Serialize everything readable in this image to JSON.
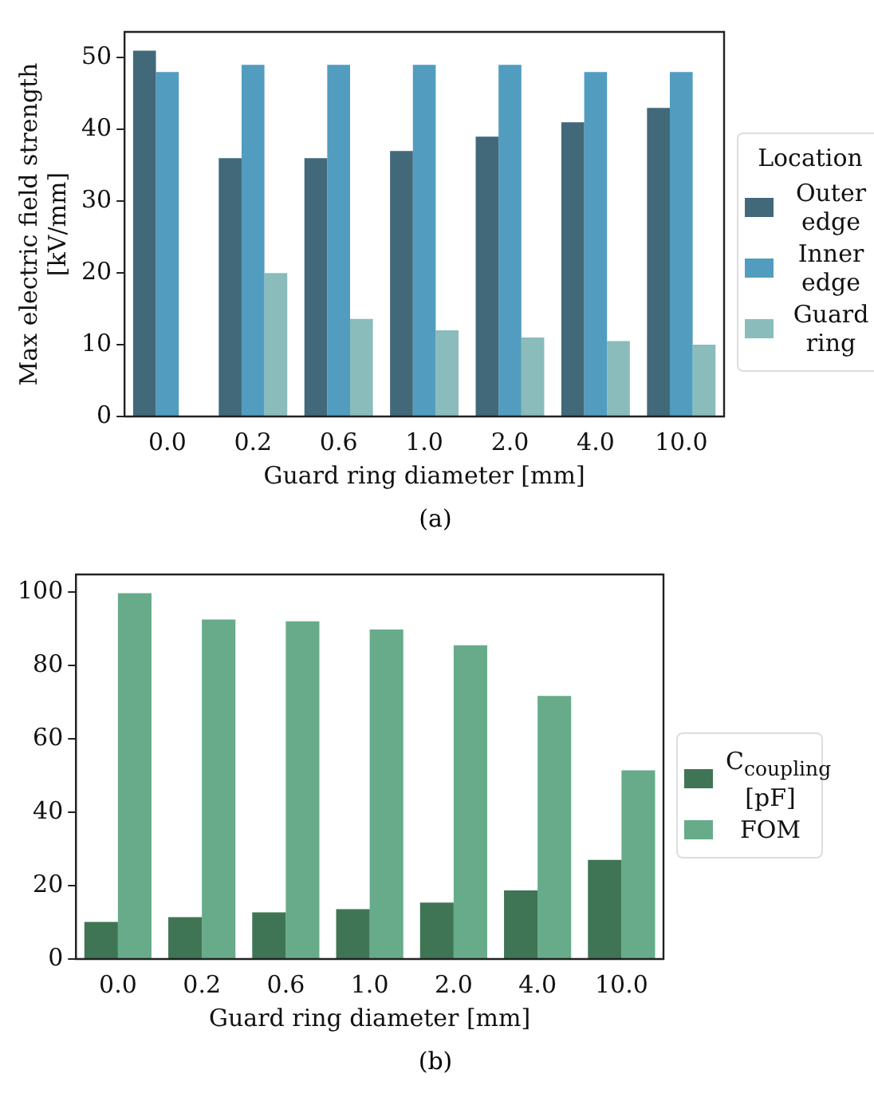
{
  "chart_data": [
    {
      "type": "bar",
      "categories": [
        "0.0",
        "0.2",
        "0.6",
        "1.0",
        "2.0",
        "4.0",
        "10.0"
      ],
      "xlabel": "Guard ring diameter [mm]",
      "ylabel": "Max electric field strength [kV/mm]",
      "legend_title": "Location",
      "legend": "right",
      "grid": false,
      "ylim": [
        0,
        53.6
      ],
      "yticks": [
        0,
        10,
        20,
        30,
        40,
        50
      ],
      "annotations": [
        "(a)"
      ],
      "series": [
        {
          "name": "Outer edge",
          "color": "#41697a",
          "values": [
            51,
            36,
            36,
            37,
            39,
            41,
            43
          ]
        },
        {
          "name": "Inner edge",
          "color": "#529dbf",
          "values": [
            48,
            49,
            49,
            49,
            49,
            48,
            48
          ]
        },
        {
          "name": "Guard ring",
          "color": "#89bcba",
          "values": [
            null,
            20,
            13.6,
            12,
            11,
            10.5,
            10
          ]
        }
      ]
    },
    {
      "type": "bar",
      "categories": [
        "0.0",
        "0.2",
        "0.6",
        "1.0",
        "2.0",
        "4.0",
        "10.0"
      ],
      "xlabel": "Guard ring diameter [mm]",
      "legend": "right",
      "grid": false,
      "ylim": [
        0,
        104.8
      ],
      "yticks": [
        0,
        20,
        40,
        60,
        80,
        100
      ],
      "annotations": [
        "(b)"
      ],
      "series": [
        {
          "name": "C$_{coupling}$ [pF]",
          "color": "#3f7555",
          "values": [
            10.1,
            11.4,
            12.7,
            13.6,
            15.4,
            18.7,
            27
          ]
        },
        {
          "name": "FOM",
          "color": "#67ab8a",
          "values": [
            99.7,
            92.5,
            92,
            89.8,
            85.5,
            71.7,
            51.4
          ]
        }
      ]
    }
  ]
}
